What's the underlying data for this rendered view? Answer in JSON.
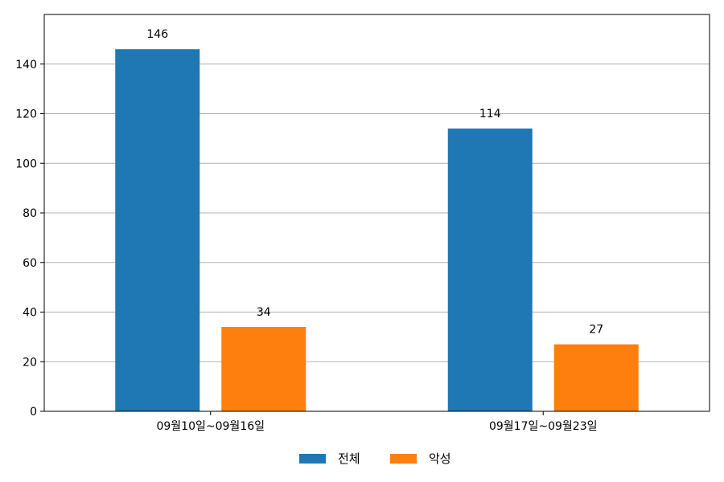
{
  "chart_data": {
    "type": "bar",
    "categories": [
      "09월10일~09월16일",
      "09월17일~09월23일"
    ],
    "series": [
      {
        "name": "전체",
        "values": [
          146,
          114
        ],
        "color": "#1f77b4"
      },
      {
        "name": "악성",
        "values": [
          34,
          27
        ],
        "color": "#ff7f0e"
      }
    ],
    "ylim": [
      0,
      160
    ],
    "yticks": [
      0,
      20,
      40,
      60,
      80,
      100,
      120,
      140
    ],
    "grid": true,
    "legend_position": "bottom-center",
    "data_labels": true
  }
}
